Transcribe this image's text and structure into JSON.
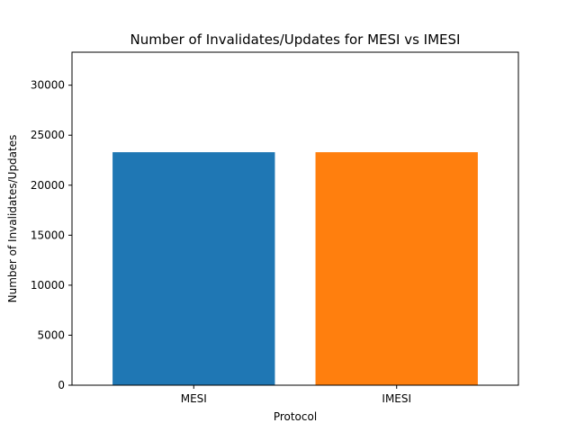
{
  "chart_data": {
    "type": "bar",
    "title": "Number of Invalidates/Updates for MESI vs IMESI",
    "xlabel": "Protocol",
    "ylabel": "Number of Invalidates/Updates",
    "categories": [
      "MESI",
      "IMESI"
    ],
    "values": [
      23300,
      23300
    ],
    "colors": [
      "#1f77b4",
      "#ff7f0e"
    ],
    "ylim": [
      0,
      33300
    ],
    "yticks": [
      0,
      5000,
      10000,
      15000,
      20000,
      25000,
      30000
    ],
    "grid": false,
    "legend": "none"
  }
}
